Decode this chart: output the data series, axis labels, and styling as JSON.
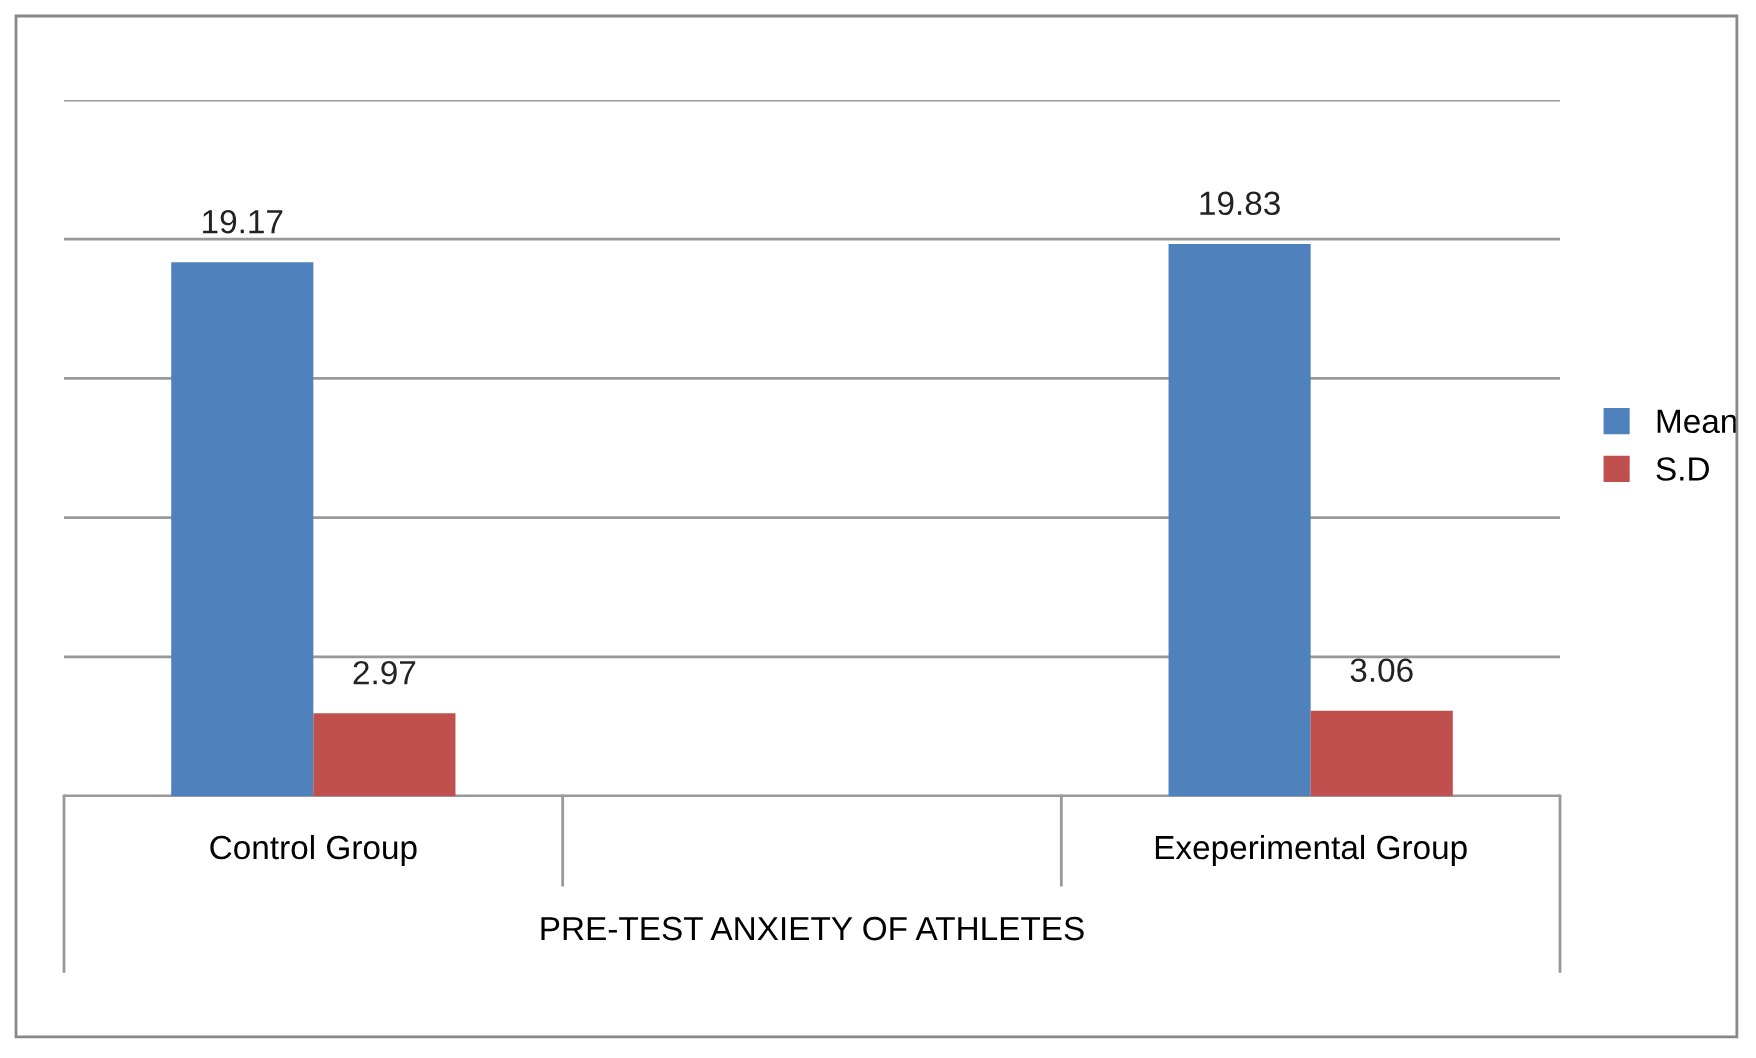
{
  "chart_data": {
    "type": "bar",
    "categories": [
      "Control Group",
      null,
      "Exeperimental Group"
    ],
    "xlabel": "PRE-TEST ANXIETY OF ATHLETES",
    "series": [
      {
        "name": "Mean",
        "color": "#4f81bd",
        "values": [
          19.17,
          null,
          19.83
        ]
      },
      {
        "name": "S.D",
        "color": "#c0504d",
        "values": [
          2.97,
          null,
          3.06
        ]
      }
    ],
    "ylim": [
      0,
      25
    ],
    "yticks": [
      {
        "value": 0,
        "label": null
      },
      {
        "value": 5,
        "label": null
      },
      {
        "value": 10,
        "label": null
      },
      {
        "value": 15,
        "label": null
      },
      {
        "value": 20,
        "label": null
      },
      {
        "value": 25,
        "label": null
      }
    ],
    "grid": "y",
    "tick_labels": "x",
    "data_labels": true,
    "legend": "right"
  }
}
